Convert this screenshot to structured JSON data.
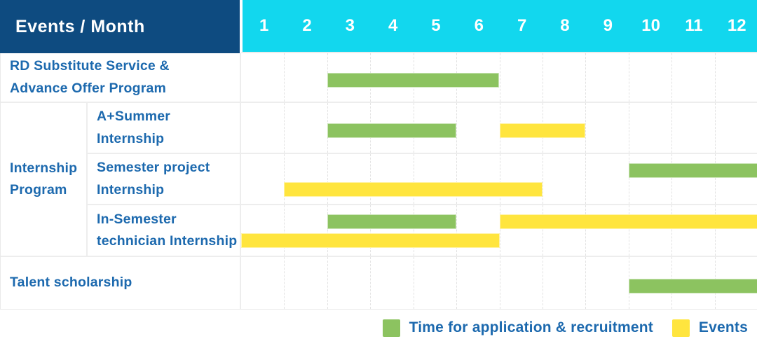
{
  "colors": {
    "header_bg": "#0e4b80",
    "months_bg": "#12d7ee",
    "application": "#8cc360",
    "event": "#ffe53e",
    "label_text": "#1c69ae"
  },
  "header": {
    "title": "Events / Month",
    "months": [
      "1",
      "2",
      "3",
      "4",
      "5",
      "6",
      "7",
      "8",
      "9",
      "10",
      "11",
      "12"
    ]
  },
  "group": {
    "label": "Internship\nProgram"
  },
  "rows": [
    {
      "label": "RD Substitute Service &\nAdvance Offer Program",
      "bars": [
        {
          "kind": "application",
          "start": 3,
          "end": 6,
          "slot": "single"
        }
      ]
    },
    {
      "label": "A+Summer\nInternship",
      "bars": [
        {
          "kind": "application",
          "start": 3,
          "end": 5,
          "slot": "single"
        },
        {
          "kind": "event",
          "start": 7,
          "end": 8,
          "slot": "single"
        }
      ]
    },
    {
      "label": "Semester project\nInternship",
      "bars": [
        {
          "kind": "application",
          "start": 10,
          "end": 12,
          "slot": "top"
        },
        {
          "kind": "event",
          "start": 2,
          "end": 7,
          "slot": "bottom"
        }
      ]
    },
    {
      "label": "In-Semester\ntechnician Internship",
      "bars": [
        {
          "kind": "application",
          "start": 3,
          "end": 5,
          "slot": "top"
        },
        {
          "kind": "event",
          "start": 7,
          "end": 12,
          "slot": "top"
        },
        {
          "kind": "event",
          "start": 1,
          "end": 6,
          "slot": "bottom"
        }
      ]
    },
    {
      "label": "Talent scholarship",
      "bars": [
        {
          "kind": "application",
          "start": 10,
          "end": 12,
          "slot": "single"
        }
      ]
    }
  ],
  "legend": [
    {
      "kind": "application",
      "label": "Time for application & recruitment"
    },
    {
      "kind": "event",
      "label": "Events"
    }
  ],
  "chart_data": {
    "type": "bar",
    "subtype": "gantt-schedule",
    "title": "Events / Month",
    "x_categories": [
      1,
      2,
      3,
      4,
      5,
      6,
      7,
      8,
      9,
      10,
      11,
      12
    ],
    "x_range": [
      1,
      12
    ],
    "grid": true,
    "legend_position": "bottom-right",
    "series_legend": [
      {
        "name": "Time for application & recruitment",
        "color": "#8cc360"
      },
      {
        "name": "Events",
        "color": "#ffe53e"
      }
    ],
    "rows": [
      {
        "event": "RD Substitute Service & Advance Offer Program",
        "group": null,
        "bars": [
          {
            "series": "Time for application & recruitment",
            "start_month": 3,
            "end_month": 6
          }
        ]
      },
      {
        "event": "A+Summer Internship",
        "group": "Internship Program",
        "bars": [
          {
            "series": "Time for application & recruitment",
            "start_month": 3,
            "end_month": 5
          },
          {
            "series": "Events",
            "start_month": 7,
            "end_month": 8
          }
        ]
      },
      {
        "event": "Semester project Internship",
        "group": "Internship Program",
        "bars": [
          {
            "series": "Time for application & recruitment",
            "start_month": 10,
            "end_month": 12
          },
          {
            "series": "Events",
            "start_month": 2,
            "end_month": 7
          }
        ]
      },
      {
        "event": "In-Semester technician Internship",
        "group": "Internship Program",
        "bars": [
          {
            "series": "Time for application & recruitment",
            "start_month": 3,
            "end_month": 5
          },
          {
            "series": "Events",
            "start_month": 7,
            "end_month": 12
          },
          {
            "series": "Events",
            "start_month": 1,
            "end_month": 6
          }
        ]
      },
      {
        "event": "Talent scholarship",
        "group": null,
        "bars": [
          {
            "series": "Time for application & recruitment",
            "start_month": 10,
            "end_month": 12
          }
        ]
      }
    ]
  }
}
